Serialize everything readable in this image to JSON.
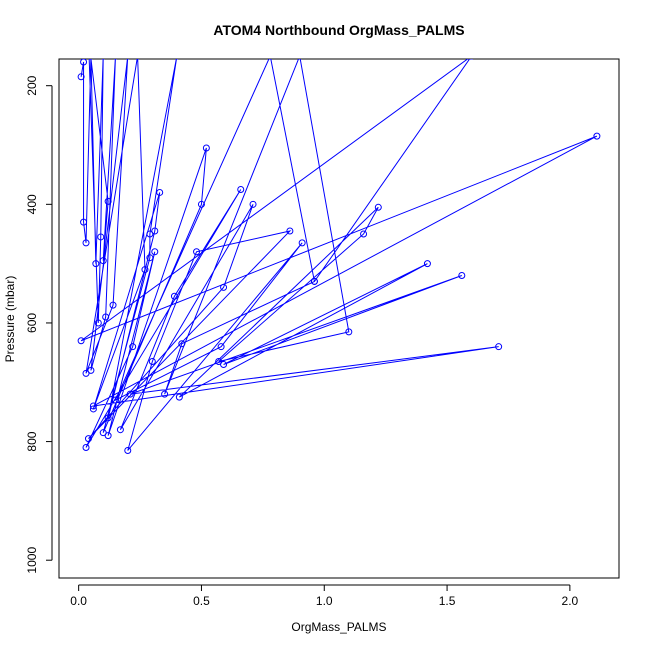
{
  "chart_data": {
    "type": "line",
    "title": "ATOM4 Northbound OrgMass_PALMS",
    "xlabel": "OrgMass_PALMS",
    "ylabel": "Pressure (mbar)",
    "xlim": [
      -0.08,
      2.2
    ],
    "ylim": [
      1030,
      155
    ],
    "y_reversed": true,
    "x_ticks": [
      0.0,
      0.5,
      1.0,
      1.5,
      2.0
    ],
    "x_tick_labels": [
      "0.0",
      "0.5",
      "1.0",
      "1.5",
      "2.0"
    ],
    "y_ticks": [
      200,
      400,
      600,
      800,
      1000
    ],
    "y_tick_labels": [
      "200",
      "400",
      "600",
      "800",
      "1000"
    ],
    "grid": false,
    "legend": "none",
    "colors": {
      "series": "#0000ff",
      "axis": "#000000"
    },
    "series": [
      {
        "points": [
          [
            0.01,
            185
          ],
          [
            0.02,
            160
          ],
          [
            0.02,
            430
          ],
          [
            0.03,
            465
          ],
          [
            0.05,
            150
          ],
          [
            0.07,
            500
          ],
          [
            0.1,
            150
          ],
          [
            0.09,
            455
          ],
          [
            0.08,
            600
          ],
          [
            0.04,
            120
          ],
          [
            0.12,
            395
          ],
          [
            0.1,
            495
          ],
          [
            0.15,
            150
          ],
          [
            0.11,
            590
          ],
          [
            0.05,
            680
          ],
          [
            0.2,
            150
          ],
          [
            0.14,
            570
          ],
          [
            0.03,
            685
          ],
          [
            0.24,
            150
          ],
          [
            0.27,
            510
          ],
          [
            0.06,
            745
          ],
          [
            0.33,
            380
          ],
          [
            0.31,
            445
          ],
          [
            0.12,
            760
          ],
          [
            0.4,
            150
          ],
          [
            0.29,
            450
          ],
          [
            0.29,
            490
          ],
          [
            0.1,
            785
          ],
          [
            0.5,
            400
          ],
          [
            0.52,
            305
          ],
          [
            0.12,
            790
          ],
          [
            0.31,
            480
          ],
          [
            0.22,
            640
          ],
          [
            0.03,
            810
          ],
          [
            0.66,
            375
          ],
          [
            0.39,
            555
          ],
          [
            0.17,
            780
          ],
          [
            0.71,
            400
          ],
          [
            0.59,
            540
          ],
          [
            0.04,
            795
          ],
          [
            0.86,
            445
          ],
          [
            0.48,
            480
          ],
          [
            0.3,
            665
          ],
          [
            0.2,
            815
          ],
          [
            0.91,
            465
          ],
          [
            0.58,
            640
          ],
          [
            0.15,
            730
          ],
          [
            0.78,
            150
          ],
          [
            0.96,
            530
          ],
          [
            0.42,
            635
          ],
          [
            0.35,
            720
          ],
          [
            0.9,
            150
          ],
          [
            1.1,
            615
          ],
          [
            0.57,
            665
          ],
          [
            1.16,
            450
          ],
          [
            1.22,
            405
          ],
          [
            0.41,
            725
          ],
          [
            1.42,
            500
          ],
          [
            0.59,
            670
          ],
          [
            1.56,
            520
          ],
          [
            0.21,
            720
          ],
          [
            1.71,
            640
          ],
          [
            0.06,
            740
          ],
          [
            2.11,
            285
          ],
          [
            0.01,
            630
          ],
          [
            1.6,
            150
          ],
          [
            0.96,
            530
          ]
        ]
      }
    ]
  }
}
